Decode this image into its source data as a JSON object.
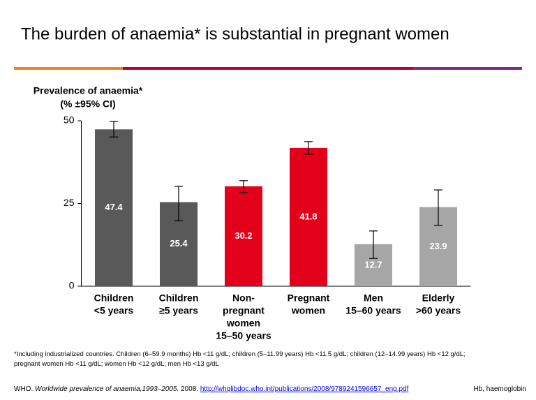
{
  "title": "The burden of anaemia* is substantial in pregnant women",
  "chart_data": {
    "type": "bar",
    "y_label": [
      "Prevalence of anaemia*",
      "(% ±95% CI)"
    ],
    "categories": [
      [
        "Children",
        "<5 years"
      ],
      [
        "Children",
        "≥5 years"
      ],
      [
        "Non-",
        "pregnant",
        "women",
        "15–50 years"
      ],
      [
        "Pregnant",
        "women"
      ],
      [
        "Men",
        "15–60 years"
      ],
      [
        "Elderly",
        ">60 years"
      ]
    ],
    "values": [
      47.4,
      25.4,
      30.2,
      41.8,
      12.7,
      23.9
    ],
    "ci_low": [
      45.1,
      19.8,
      28.3,
      39.9,
      8.4,
      18.4
    ],
    "ci_high": [
      49.8,
      30.2,
      31.9,
      43.7,
      16.7,
      29.1
    ],
    "colors": [
      "#595959",
      "#595959",
      "#e2001a",
      "#e2001a",
      "#a6a6a6",
      "#a6a6a6"
    ],
    "ylim": [
      0,
      50
    ],
    "yticks": [
      0,
      25,
      50
    ]
  },
  "footnote": [
    "*Including industrialized countries. Children (6–59.9 months) Hb <11 g/dL; children (5–11.99 years) Hb <11.5 g/dL; children (12–14.99 years) Hb <12 g/dL;",
    "pregnant women Hb <11 g/dL;  women Hb <12 g/dL; men Hb <13 g/dL"
  ],
  "source": {
    "author": "WHO.",
    "work": "Worldwide prevalence of anaemia,1993–2005.",
    "year": "2008.",
    "link": "http://whqlibdoc.who.int/publications/2008/9789241596657_eng.pdf"
  },
  "abbreviation": "Hb, haemoglobin"
}
